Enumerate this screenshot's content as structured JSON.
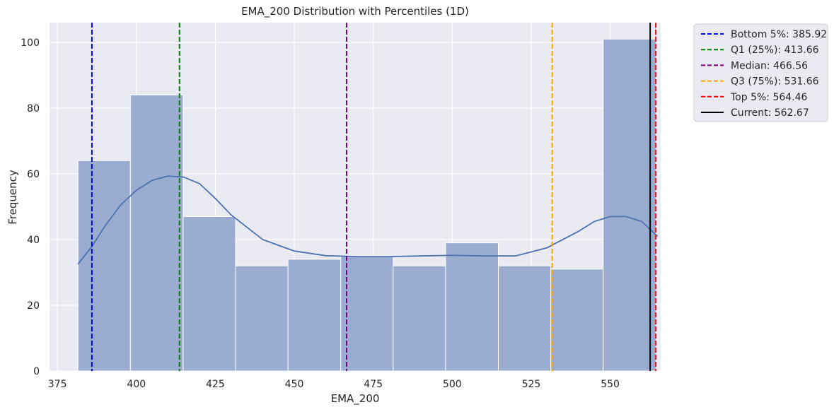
{
  "chart_data": {
    "type": "bar",
    "title": "EMA_200 Distribution with Percentiles (1D)",
    "xlabel": "EMA_200",
    "ylabel": "Frequency",
    "xlim": [
      372.5,
      566
    ],
    "ylim": [
      0,
      106
    ],
    "x_ticks": [
      375,
      400,
      425,
      450,
      475,
      500,
      525,
      550
    ],
    "y_ticks": [
      0,
      20,
      40,
      60,
      80,
      100
    ],
    "grid": true,
    "legend_position": "outside-top-right",
    "bins": [
      {
        "x0": 381.5,
        "x1": 398.1,
        "count": 64
      },
      {
        "x0": 398.1,
        "x1": 414.8,
        "count": 84
      },
      {
        "x0": 414.8,
        "x1": 431.4,
        "count": 47
      },
      {
        "x0": 431.4,
        "x1": 448.0,
        "count": 32
      },
      {
        "x0": 448.0,
        "x1": 464.7,
        "count": 34
      },
      {
        "x0": 464.7,
        "x1": 481.3,
        "count": 35
      },
      {
        "x0": 481.3,
        "x1": 497.9,
        "count": 32
      },
      {
        "x0": 497.9,
        "x1": 514.6,
        "count": 39
      },
      {
        "x0": 514.6,
        "x1": 531.2,
        "count": 32
      },
      {
        "x0": 531.2,
        "x1": 547.8,
        "count": 31
      },
      {
        "x0": 547.8,
        "x1": 564.5,
        "count": 101
      }
    ],
    "kde": {
      "x": [
        381.5,
        386,
        390,
        395,
        400,
        405,
        410,
        415,
        420,
        425,
        430,
        440,
        450,
        460,
        470,
        480,
        490,
        500,
        510,
        520,
        530,
        540,
        545,
        550,
        555,
        560,
        565
      ],
      "y": [
        32.5,
        38,
        44,
        50.5,
        55,
        58,
        59.3,
        59,
        57,
        52.5,
        47.5,
        40,
        36.5,
        35.1,
        34.8,
        34.8,
        35,
        35.2,
        35,
        35,
        37.5,
        42.5,
        45.5,
        47,
        47,
        45.5,
        41
      ]
    },
    "series": [
      {
        "name": "Bottom 5%: 385.92",
        "value": 385.92,
        "color": "#0000ff",
        "style": "dashed"
      },
      {
        "name": "Q1 (25%): 413.66",
        "value": 413.66,
        "color": "#008000",
        "style": "dashed"
      },
      {
        "name": "Median: 466.56",
        "value": 466.56,
        "color": "#800080",
        "style": "dashed"
      },
      {
        "name": "Q3 (75%): 531.66",
        "value": 531.66,
        "color": "#ffa500",
        "style": "dashed"
      },
      {
        "name": "Top 5%: 564.46",
        "value": 564.46,
        "color": "#ff0000",
        "style": "dashed"
      },
      {
        "name": "Current: 562.67",
        "value": 562.67,
        "color": "#000000",
        "style": "solid"
      }
    ],
    "colors": {
      "background": "#eaeaf2",
      "grid": "#ffffff",
      "bar_fill": "#9aadd0",
      "kde_line": "#4c72b0"
    }
  }
}
